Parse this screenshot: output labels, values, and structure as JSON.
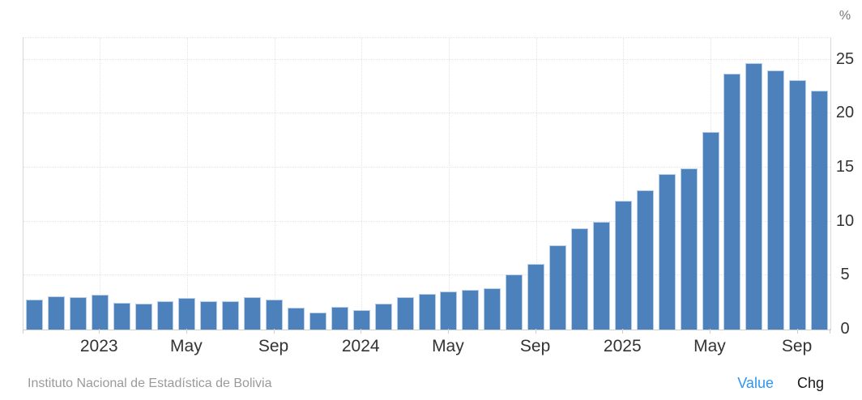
{
  "chart": {
    "unit_label": "%",
    "y_axis": {
      "ticks": [
        0,
        5,
        10,
        15,
        20,
        25
      ],
      "max": 27
    },
    "x_axis": {
      "tick_labels": [
        {
          "label": "2023",
          "index": 3
        },
        {
          "label": "May",
          "index": 7
        },
        {
          "label": "Sep",
          "index": 11
        },
        {
          "label": "2024",
          "index": 15
        },
        {
          "label": "May",
          "index": 19
        },
        {
          "label": "Sep",
          "index": 23
        },
        {
          "label": "2025",
          "index": 27
        },
        {
          "label": "May",
          "index": 31
        },
        {
          "label": "Sep",
          "index": 35
        }
      ]
    },
    "colors": {
      "bar": "#4d81bc",
      "bar_border": "#b7cee9",
      "gridline": "#e4e4e4",
      "axis_line": "#cfcfcf",
      "label": "#333333",
      "unit": "#777777"
    }
  },
  "chart_data": {
    "type": "bar",
    "x": [
      "Oct 2022",
      "Nov 2022",
      "Dec 2022",
      "Jan 2023",
      "Feb 2023",
      "Mar 2023",
      "Apr 2023",
      "May 2023",
      "Jun 2023",
      "Jul 2023",
      "Aug 2023",
      "Sep 2023",
      "Oct 2023",
      "Nov 2023",
      "Dec 2023",
      "Jan 2024",
      "Feb 2024",
      "Mar 2024",
      "Apr 2024",
      "May 2024",
      "Jun 2024",
      "Jul 2024",
      "Aug 2024",
      "Sep 2024",
      "Oct 2024",
      "Nov 2024",
      "Dec 2024",
      "Jan 2025",
      "Feb 2025",
      "Mar 2025",
      "Apr 2025",
      "May 2025",
      "Jun 2025",
      "Jul 2025",
      "Aug 2025",
      "Sep 2025",
      "Oct 2025"
    ],
    "values": [
      2.8,
      3.1,
      3.0,
      3.2,
      2.5,
      2.4,
      2.6,
      2.9,
      2.6,
      2.6,
      3.0,
      2.8,
      2.0,
      1.6,
      2.1,
      1.8,
      2.4,
      3.0,
      3.3,
      3.5,
      3.7,
      3.8,
      5.1,
      6.1,
      7.8,
      9.4,
      10.0,
      11.9,
      12.9,
      14.4,
      14.9,
      18.3,
      23.7,
      24.7,
      24.0,
      23.1,
      22.1
    ],
    "title": "",
    "xlabel": "",
    "ylabel": "%",
    "ylim": [
      0,
      27
    ],
    "grid": true,
    "x_ticks_shown": [
      "2023",
      "May",
      "Sep",
      "2024",
      "May",
      "Sep",
      "2025",
      "May",
      "Sep"
    ],
    "y_ticks_shown": [
      "0",
      "5",
      "10",
      "15",
      "20",
      "25"
    ]
  },
  "footer": {
    "source": "Instituto Nacional de Estadística de Bolivia",
    "value_label": "Value",
    "chg_label": "Chg",
    "value_color": "#2d96f2",
    "chg_color": "#171717"
  }
}
